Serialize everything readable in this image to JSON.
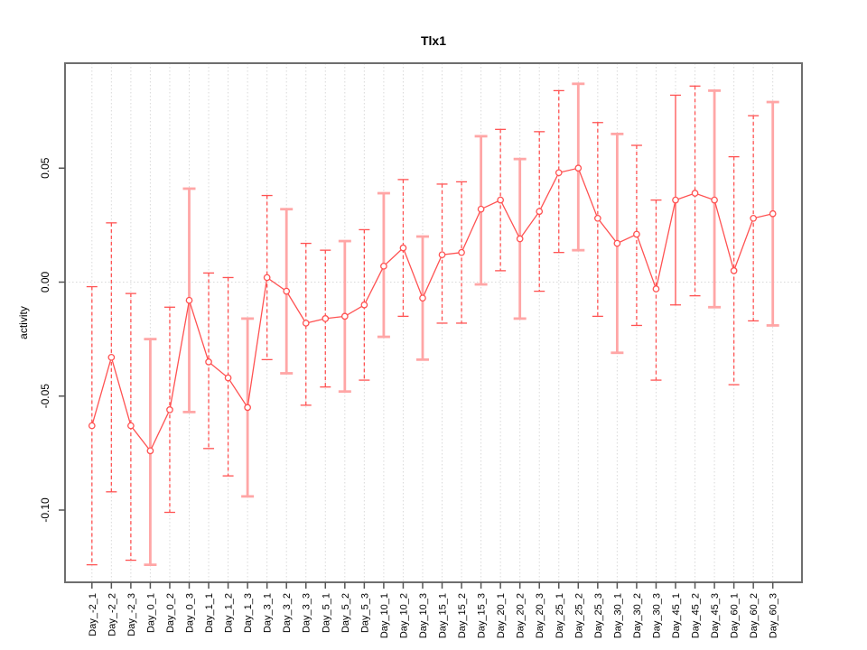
{
  "title": "Tlx1",
  "chart_data": {
    "type": "line",
    "title": "Tlx1",
    "xlabel": "",
    "ylabel": "activity",
    "ylim": [
      -0.131,
      0.092
    ],
    "yticks": [
      -0.1,
      -0.05,
      0.0,
      0.05
    ],
    "ytick_labels": [
      "-0.10",
      "-0.05",
      "0.00",
      "0.05"
    ],
    "grid": "vertical dotted gridline at every category; dotted horizontal line at y=0",
    "legend_position": "none",
    "categories": [
      "Day_-2_1",
      "Day_-2_2",
      "Day_-2_3",
      "Day_0_1",
      "Day_0_2",
      "Day_0_3",
      "Day_1_1",
      "Day_1_2",
      "Day_1_3",
      "Day_3_1",
      "Day_3_2",
      "Day_3_3",
      "Day_5_1",
      "Day_5_2",
      "Day_5_3",
      "Day_10_1",
      "Day_10_2",
      "Day_10_3",
      "Day_15_1",
      "Day_15_2",
      "Day_15_3",
      "Day_20_1",
      "Day_20_2",
      "Day_20_3",
      "Day_25_1",
      "Day_25_2",
      "Day_25_3",
      "Day_30_1",
      "Day_30_2",
      "Day_30_3",
      "Day_45_1",
      "Day_45_2",
      "Day_45_3",
      "Day_60_1",
      "Day_60_2",
      "Day_60_3"
    ],
    "series": [
      {
        "name": "activity",
        "marker": "open-circle",
        "values": [
          -0.063,
          -0.033,
          -0.063,
          -0.074,
          -0.056,
          -0.008,
          -0.035,
          -0.042,
          -0.055,
          0.002,
          -0.004,
          -0.018,
          -0.016,
          -0.015,
          -0.01,
          0.007,
          0.015,
          -0.007,
          0.012,
          0.013,
          0.032,
          0.036,
          0.019,
          0.031,
          0.048,
          0.05,
          0.028,
          0.017,
          0.021,
          -0.003,
          0.036,
          0.039,
          0.036,
          0.005,
          0.028,
          0.03
        ],
        "error_low": [
          -0.124,
          -0.092,
          -0.122,
          -0.124,
          -0.101,
          -0.057,
          -0.073,
          -0.085,
          -0.094,
          -0.034,
          -0.04,
          -0.054,
          -0.046,
          -0.048,
          -0.043,
          -0.024,
          -0.015,
          -0.034,
          -0.018,
          -0.018,
          -0.001,
          0.005,
          -0.016,
          -0.004,
          0.013,
          0.014,
          -0.015,
          -0.031,
          -0.019,
          -0.043,
          -0.01,
          -0.006,
          -0.011,
          -0.045,
          -0.017,
          -0.019
        ],
        "error_high": [
          -0.002,
          0.026,
          -0.005,
          -0.025,
          -0.011,
          0.041,
          0.004,
          0.002,
          -0.016,
          0.038,
          0.032,
          0.017,
          0.014,
          0.018,
          0.023,
          0.039,
          0.045,
          0.02,
          0.043,
          0.044,
          0.064,
          0.067,
          0.054,
          0.066,
          0.084,
          0.087,
          0.07,
          0.065,
          0.06,
          0.036,
          0.082,
          0.086,
          0.084,
          0.055,
          0.073,
          0.079
        ],
        "error_bar_styles": [
          "dashed",
          "dashed",
          "dashed",
          "pink",
          "dashed",
          "pink",
          "dashed",
          "dashed",
          "pink",
          "dashed",
          "pink",
          "dashed",
          "dashed",
          "pink",
          "dashed",
          "pink",
          "dashed",
          "pink",
          "dashed",
          "dashed",
          "pink",
          "dashed",
          "pink",
          "dashed",
          "dashed",
          "pink",
          "dashed",
          "pink",
          "dashed",
          "dashed",
          "solid",
          "dashed",
          "pink",
          "dashed",
          "dashed",
          "pink"
        ]
      }
    ],
    "colors": {
      "line": "#ff5252",
      "marker_stroke": "#ff5252",
      "marker_fill": "#ffffff",
      "error_dashed": "#ff5252",
      "error_solid": "#ff5252",
      "error_pink": "#ffa6a6",
      "grid": "#d9d9d9",
      "axis_box": "#6e6e6e",
      "tick": "#555555",
      "text": "#000000"
    }
  }
}
